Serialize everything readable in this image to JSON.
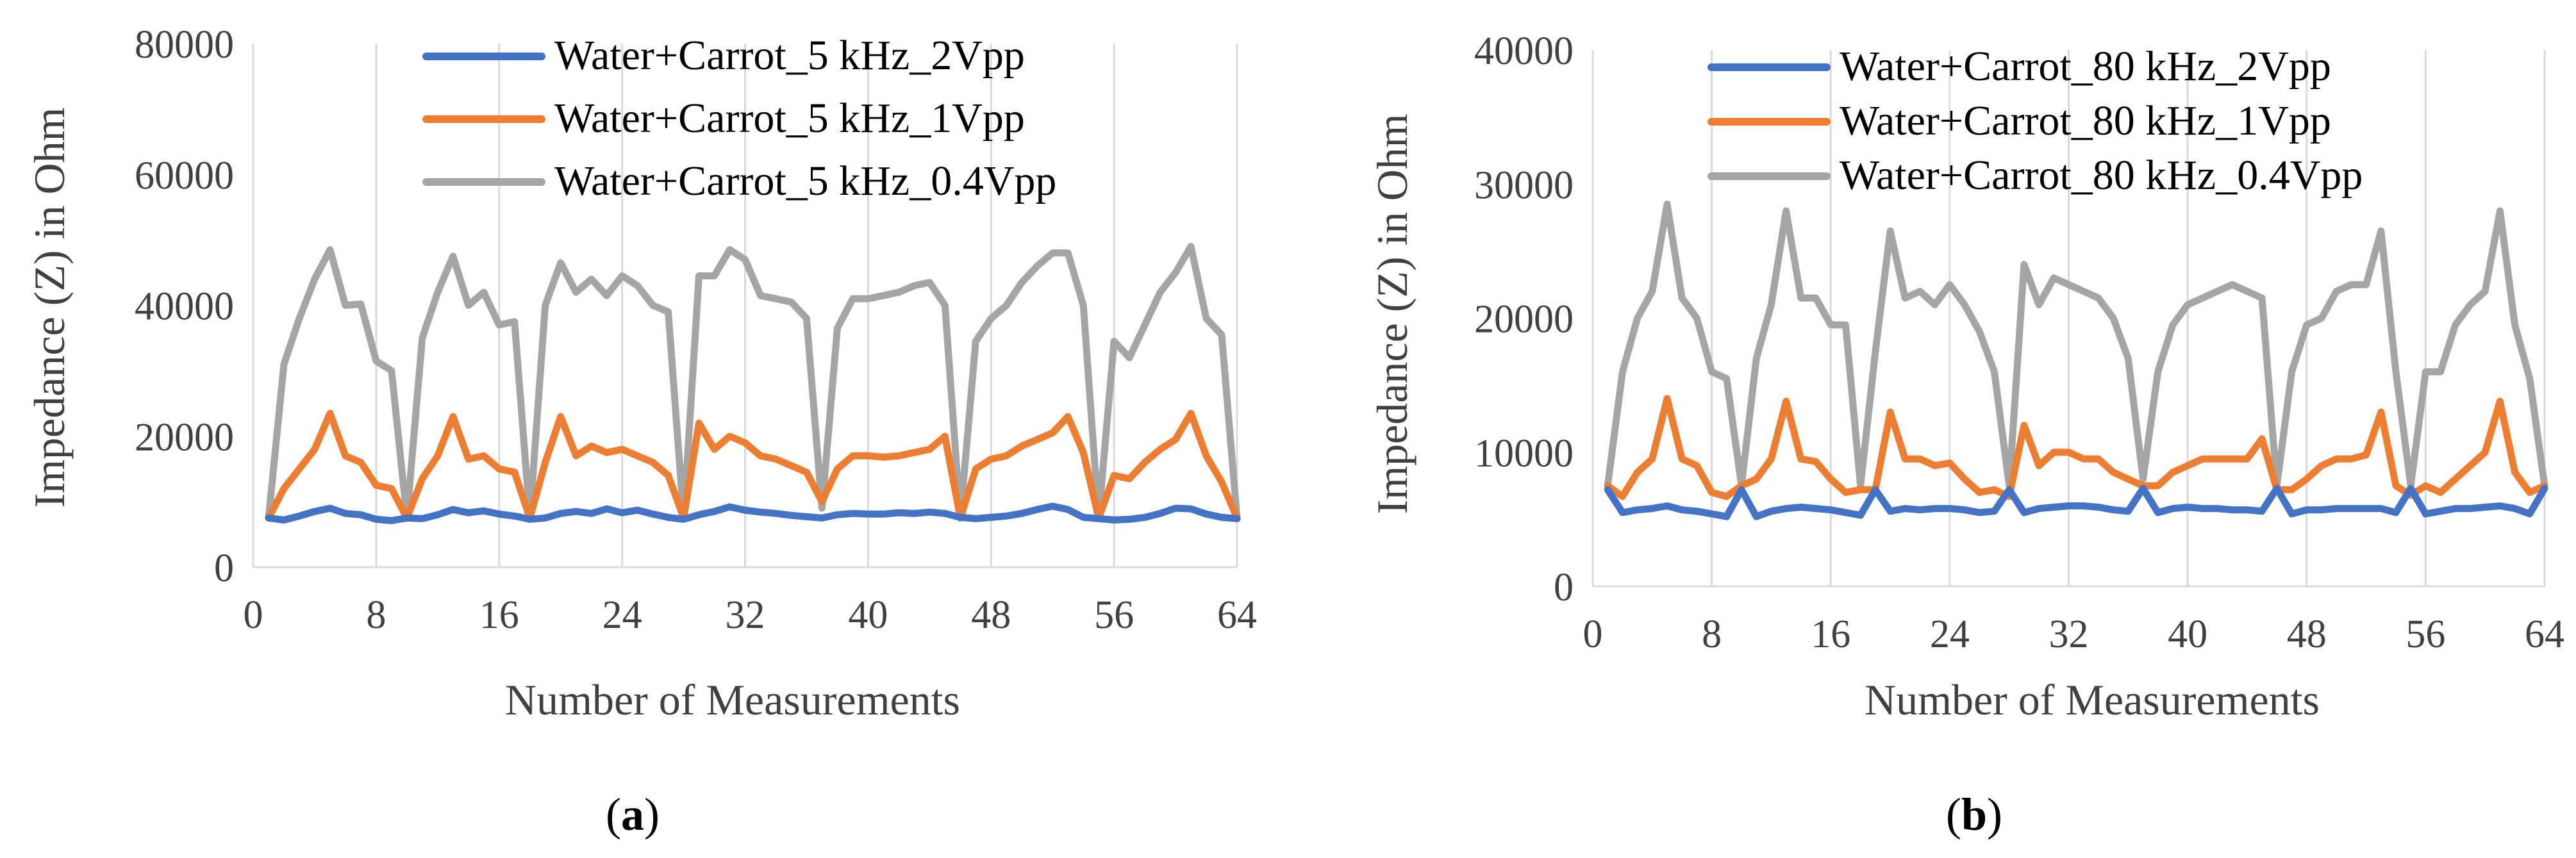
{
  "colors": {
    "blue": "#4472C4",
    "orange": "#ED7D31",
    "gray": "#A5A5A5",
    "grid": "#D9D9D9",
    "axis": "#BFBFBF"
  },
  "captions": [
    {
      "open": "(",
      "letter": "a",
      "close": ")"
    },
    {
      "open": "(",
      "letter": "b",
      "close": ")"
    }
  ],
  "chart_data": [
    {
      "type": "line",
      "title": "",
      "xlabel": "Number of Measurements",
      "ylabel": "Impedance (Z) in Ohm",
      "xlim": [
        0,
        64
      ],
      "ylim": [
        0,
        80000
      ],
      "xticks": [
        0,
        8,
        16,
        24,
        32,
        40,
        48,
        56,
        64
      ],
      "yticks": [
        0,
        20000,
        40000,
        60000,
        80000
      ],
      "xtick_labels": [
        "0",
        "8",
        "16",
        "24",
        "32",
        "40",
        "48",
        "56",
        "64"
      ],
      "ytick_labels": [
        "0",
        "20000",
        "40000",
        "60000",
        "80000"
      ],
      "x": [
        1,
        2,
        3,
        4,
        5,
        6,
        7,
        8,
        9,
        10,
        11,
        12,
        13,
        14,
        15,
        16,
        17,
        18,
        19,
        20,
        21,
        22,
        23,
        24,
        25,
        26,
        27,
        28,
        29,
        30,
        31,
        32,
        33,
        34,
        35,
        36,
        37,
        38,
        39,
        40,
        41,
        42,
        43,
        44,
        45,
        46,
        47,
        48,
        49,
        50,
        51,
        52,
        53,
        54,
        55,
        56,
        57,
        58,
        59,
        60,
        61,
        62,
        63,
        64
      ],
      "series": [
        {
          "name": "Water+Carrot_5 kHz_2Vpp",
          "color": "#4472C4",
          "values": [
            7500,
            7200,
            7800,
            8500,
            9000,
            8200,
            8000,
            7300,
            7100,
            7500,
            7400,
            8000,
            8800,
            8300,
            8600,
            8100,
            7800,
            7300,
            7500,
            8200,
            8500,
            8200,
            8900,
            8300,
            8700,
            8100,
            7600,
            7300,
            8000,
            8500,
            9200,
            8700,
            8400,
            8200,
            7900,
            7700,
            7500,
            8000,
            8200,
            8100,
            8100,
            8300,
            8200,
            8400,
            8200,
            7600,
            7400,
            7600,
            7800,
            8200,
            8800,
            9300,
            8800,
            7600,
            7400,
            7200,
            7300,
            7600,
            8200,
            9000,
            8900,
            8100,
            7600,
            7400
          ]
        },
        {
          "name": "Water+Carrot_5 kHz_1Vpp",
          "color": "#ED7D31",
          "values": [
            7500,
            12000,
            15000,
            18000,
            23500,
            17000,
            16000,
            12500,
            12000,
            7500,
            13500,
            17000,
            23000,
            16500,
            17000,
            15000,
            14500,
            7500,
            16000,
            23000,
            17000,
            18500,
            17500,
            18000,
            17000,
            16000,
            14000,
            7500,
            22000,
            18000,
            20000,
            19000,
            17000,
            16500,
            15500,
            14500,
            10000,
            15000,
            17000,
            17000,
            16800,
            17000,
            17500,
            18000,
            20000,
            7500,
            15000,
            16500,
            17000,
            18500,
            19500,
            20500,
            23000,
            17500,
            7500,
            14000,
            13500,
            16000,
            18000,
            19500,
            23500,
            17000,
            13000,
            7500
          ]
        },
        {
          "name": "Water+Carrot_5 kHz_0.4Vpp",
          "color": "#A5A5A5",
          "values": [
            7500,
            31000,
            38000,
            44000,
            48500,
            40000,
            40200,
            31500,
            30000,
            7500,
            35000,
            42000,
            47500,
            40000,
            42000,
            37000,
            37500,
            7500,
            40000,
            46500,
            42000,
            44000,
            41500,
            44500,
            43000,
            40000,
            39000,
            7500,
            44500,
            44500,
            48500,
            47000,
            41500,
            41000,
            40500,
            38000,
            9000,
            36500,
            41000,
            41000,
            41500,
            42000,
            43000,
            43500,
            40000,
            7500,
            34500,
            38000,
            40000,
            43500,
            46000,
            48000,
            48000,
            40000,
            7500,
            34500,
            32000,
            37000,
            42000,
            45000,
            49000,
            38000,
            35500,
            7500
          ]
        }
      ]
    },
    {
      "type": "line",
      "title": "",
      "xlabel": "Number of Measurements",
      "ylabel": "Impedance (Z) in Ohm",
      "xlim": [
        0,
        64
      ],
      "ylim": [
        0,
        40000
      ],
      "xticks": [
        0,
        8,
        16,
        24,
        32,
        40,
        48,
        56,
        64
      ],
      "yticks": [
        0,
        10000,
        20000,
        30000,
        40000
      ],
      "xtick_labels": [
        "0",
        "8",
        "16",
        "24",
        "32",
        "40",
        "48",
        "56",
        "64"
      ],
      "ytick_labels": [
        "0",
        "10000",
        "20000",
        "30000",
        "40000"
      ],
      "x": [
        1,
        2,
        3,
        4,
        5,
        6,
        7,
        8,
        9,
        10,
        11,
        12,
        13,
        14,
        15,
        16,
        17,
        18,
        19,
        20,
        21,
        22,
        23,
        24,
        25,
        26,
        27,
        28,
        29,
        30,
        31,
        32,
        33,
        34,
        35,
        36,
        37,
        38,
        39,
        40,
        41,
        42,
        43,
        44,
        45,
        46,
        47,
        48,
        49,
        50,
        51,
        52,
        53,
        54,
        55,
        56,
        57,
        58,
        59,
        60,
        61,
        62,
        63,
        64
      ],
      "series": [
        {
          "name": "Water+Carrot_80 kHz_2Vpp",
          "color": "#4472C4",
          "values": [
            7200,
            5500,
            5700,
            5800,
            6000,
            5700,
            5600,
            5400,
            5200,
            7200,
            5200,
            5600,
            5800,
            5900,
            5800,
            5700,
            5500,
            5300,
            7200,
            5600,
            5800,
            5700,
            5800,
            5800,
            5700,
            5500,
            5600,
            7200,
            5500,
            5800,
            5900,
            6000,
            6000,
            5900,
            5700,
            5600,
            7300,
            5500,
            5800,
            5900,
            5800,
            5800,
            5700,
            5700,
            5600,
            7300,
            5400,
            5700,
            5700,
            5800,
            5800,
            5800,
            5800,
            5500,
            7300,
            5400,
            5600,
            5800,
            5800,
            5900,
            6000,
            5800,
            5400,
            7300
          ]
        },
        {
          "name": "Water+Carrot_80 kHz_1Vpp",
          "color": "#ED7D31",
          "values": [
            7500,
            6700,
            8500,
            9500,
            14000,
            9500,
            9000,
            7000,
            6700,
            7500,
            8000,
            9500,
            13800,
            9500,
            9300,
            8000,
            7000,
            7200,
            7200,
            13000,
            9500,
            9500,
            9000,
            9200,
            8000,
            7000,
            7200,
            6700,
            12000,
            9000,
            10000,
            10000,
            9500,
            9500,
            8500,
            8000,
            7500,
            7500,
            8500,
            9000,
            9500,
            9500,
            9500,
            9500,
            11000,
            7200,
            7200,
            8000,
            9000,
            9500,
            9500,
            9800,
            13000,
            7500,
            6800,
            7500,
            7000,
            8000,
            9000,
            10000,
            13800,
            8500,
            7000,
            7500
          ]
        },
        {
          "name": "Water+Carrot_80 kHz_0.4Vpp",
          "color": "#A5A5A5",
          "values": [
            7500,
            16000,
            20000,
            22000,
            28500,
            21500,
            20000,
            16000,
            15500,
            7500,
            17000,
            21000,
            28000,
            21500,
            21500,
            19500,
            19500,
            7500,
            17500,
            26500,
            21500,
            22000,
            21000,
            22500,
            21000,
            19000,
            16000,
            7500,
            24000,
            21000,
            23000,
            22500,
            22000,
            21500,
            20000,
            17000,
            8000,
            16000,
            19500,
            21000,
            21500,
            22000,
            22500,
            22000,
            21500,
            7500,
            16000,
            19500,
            20000,
            22000,
            22500,
            22500,
            26500,
            16000,
            7500,
            16000,
            16000,
            19500,
            21000,
            22000,
            28000,
            19500,
            15500,
            7500
          ]
        }
      ]
    }
  ]
}
